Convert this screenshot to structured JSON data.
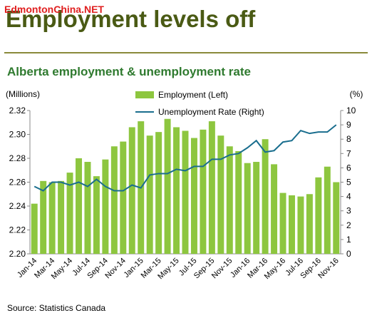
{
  "watermark": "EdmontonChina.NET",
  "chart_data": {
    "type": "bar-line",
    "title": "Employment levels off",
    "subtitle": "Alberta employment & unemployment rate",
    "ylabel": "(Millions)",
    "y2label": "(%)",
    "source": "Source: Statistics Canada",
    "categories": [
      "Jan-14",
      null,
      "Mar-14",
      null,
      "May-14",
      null,
      "Jul-14",
      null,
      "Sep-14",
      null,
      "Nov-14",
      null,
      "Jan-15",
      null,
      "Mar-15",
      null,
      "May-15",
      null,
      "Jul-15",
      null,
      "Sep-15",
      null,
      "Nov-15",
      null,
      "Jan-16",
      null,
      "Mar-16",
      null,
      "May-16",
      null,
      "Jul-16",
      null,
      "Sep-16",
      null,
      "Nov-16"
    ],
    "series": [
      {
        "name": "Employment (Left)",
        "type": "bar",
        "color": "#8dc63f",
        "axis": "y",
        "values": [
          2.242,
          2.261,
          2.26,
          2.261,
          2.268,
          2.28,
          2.277,
          2.265,
          2.279,
          2.29,
          2.294,
          2.306,
          2.311,
          2.299,
          2.302,
          2.313,
          2.306,
          2.303,
          2.297,
          2.304,
          2.311,
          2.299,
          2.29,
          2.286,
          2.276,
          2.277,
          2.296,
          2.275,
          2.251,
          2.249,
          2.248,
          2.25,
          2.264,
          2.273,
          2.26
        ]
      },
      {
        "name": "Unemployment Rate (Right)",
        "type": "line",
        "color": "#1a6e8e",
        "axis": "y2",
        "values": [
          4.7,
          4.4,
          5.0,
          5.0,
          4.8,
          5.0,
          4.7,
          5.2,
          4.7,
          4.4,
          4.4,
          4.8,
          4.6,
          5.5,
          5.6,
          5.6,
          5.9,
          5.8,
          6.1,
          6.1,
          6.6,
          6.6,
          6.9,
          7.0,
          7.4,
          7.9,
          7.1,
          7.2,
          7.8,
          7.9,
          8.6,
          8.4,
          8.5,
          8.5,
          9.0
        ]
      }
    ],
    "ylim": [
      2.2,
      2.32
    ],
    "yticks": [
      {
        "value": 2.2,
        "label": "2.20"
      },
      2.22,
      2.24,
      2.26,
      2.28,
      {
        "value": 2.3,
        "label": "2.30"
      },
      2.32
    ],
    "y2lim": [
      0,
      10
    ],
    "y2ticks": [
      0,
      1,
      2,
      3,
      4,
      5,
      6,
      7,
      8,
      9,
      10
    ]
  }
}
